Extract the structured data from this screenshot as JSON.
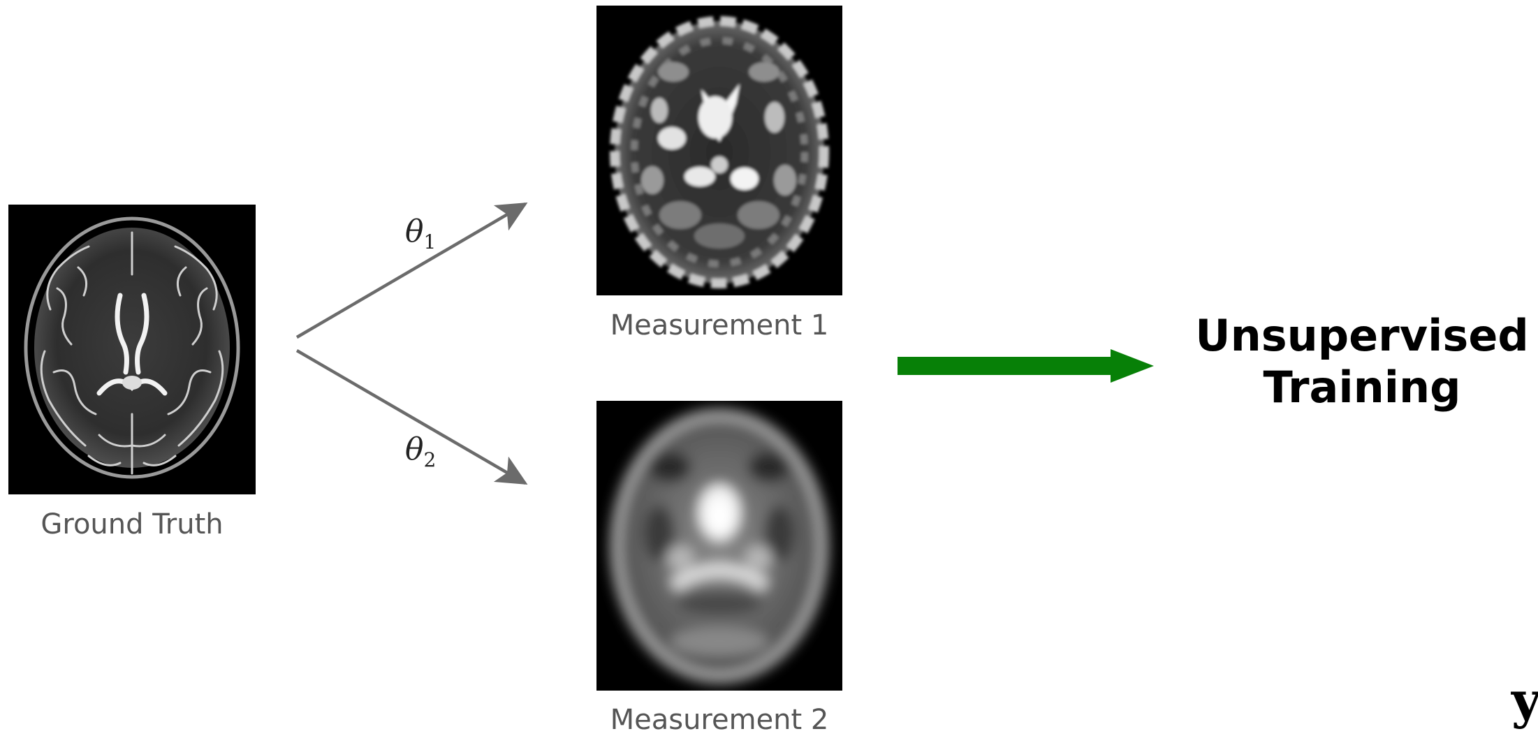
{
  "diagram": {
    "source": {
      "caption": "Ground Truth",
      "image_icon": "brain-mri-icon"
    },
    "operators": [
      {
        "symbol": "θ",
        "subscript": "1"
      },
      {
        "symbol": "θ",
        "subscript": "2"
      }
    ],
    "measurements": [
      {
        "caption": "Measurement 1",
        "image_icon": "brain-mri-sharp-icon"
      },
      {
        "caption": "Measurement 2",
        "image_icon": "brain-mri-blurred-icon"
      }
    ],
    "target": {
      "line1": "Unsupervised",
      "line2": "Training"
    },
    "corner_symbol": "y",
    "colors": {
      "operator_arrow": "#6b6b6b",
      "training_arrow": "#078007",
      "caption_text": "#555555",
      "image_background": "#000000"
    }
  }
}
